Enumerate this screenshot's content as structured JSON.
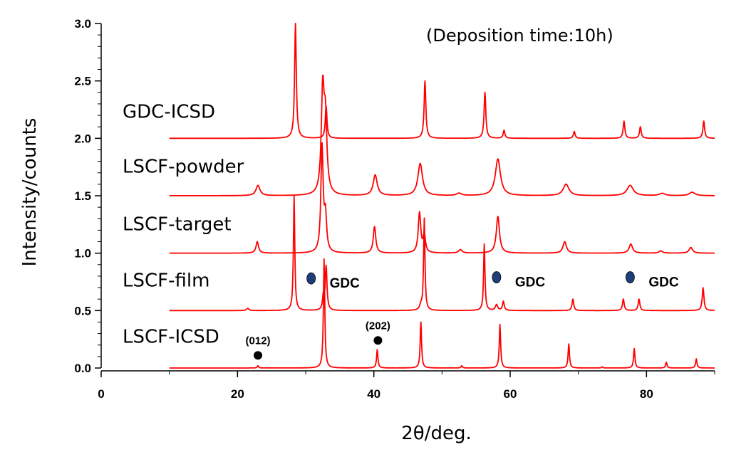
{
  "chart_data": {
    "type": "line",
    "title": "",
    "annotation_top": "(Deposition time:10h)",
    "xlabel": "2θ/deg.",
    "ylabel": "Intensity/counts",
    "xlim": [
      0,
      90
    ],
    "ylim": [
      0,
      3.0
    ],
    "x_ticks": [
      {
        "value": 0,
        "label": "0"
      },
      {
        "value": 20,
        "label": "20"
      },
      {
        "value": 40,
        "label": "40"
      },
      {
        "value": 60,
        "label": "60"
      },
      {
        "value": 80,
        "label": "80"
      }
    ],
    "y_ticks": [
      {
        "value": 0.0,
        "label": "0.0"
      },
      {
        "value": 0.5,
        "label": "0.5"
      },
      {
        "value": 1.0,
        "label": "1.0"
      },
      {
        "value": 1.5,
        "label": "1.5"
      },
      {
        "value": 2.0,
        "label": "2.0"
      },
      {
        "value": 2.5,
        "label": "2.5"
      },
      {
        "value": 3.0,
        "label": "3.0"
      }
    ],
    "line_color": "#ff0000",
    "x_range": [
      10,
      90
    ],
    "series": [
      {
        "name": "GDC-ICSD",
        "baseline": 2.0,
        "label_y": 2.18,
        "peaks": [
          [
            28.5,
            1.0,
            0.15
          ],
          [
            33.0,
            0.28,
            0.15
          ],
          [
            47.5,
            0.5,
            0.15
          ],
          [
            56.3,
            0.4,
            0.15
          ],
          [
            59.1,
            0.07,
            0.15
          ],
          [
            69.4,
            0.06,
            0.15
          ],
          [
            76.7,
            0.15,
            0.15
          ],
          [
            79.1,
            0.1,
            0.15
          ],
          [
            88.4,
            0.15,
            0.15
          ]
        ]
      },
      {
        "name": "LSCF-powder",
        "baseline": 1.5,
        "label_y": 1.7,
        "peaks": [
          [
            23.0,
            0.09,
            0.35
          ],
          [
            32.5,
            0.88,
            0.25
          ],
          [
            32.9,
            0.6,
            0.25
          ],
          [
            40.2,
            0.18,
            0.35
          ],
          [
            46.8,
            0.28,
            0.4
          ],
          [
            52.5,
            0.02,
            0.4
          ],
          [
            58.2,
            0.32,
            0.45
          ],
          [
            68.2,
            0.1,
            0.5
          ],
          [
            77.6,
            0.09,
            0.55
          ],
          [
            82.3,
            0.02,
            0.5
          ],
          [
            86.7,
            0.03,
            0.5
          ]
        ]
      },
      {
        "name": "LSCF-target",
        "baseline": 1.0,
        "label_y": 1.2,
        "peaks": [
          [
            22.9,
            0.1,
            0.22
          ],
          [
            32.4,
            0.92,
            0.2
          ],
          [
            32.9,
            0.3,
            0.2
          ],
          [
            40.1,
            0.23,
            0.22
          ],
          [
            46.7,
            0.35,
            0.22
          ],
          [
            47.4,
            0.15,
            0.2
          ],
          [
            52.7,
            0.03,
            0.3
          ],
          [
            58.2,
            0.32,
            0.28
          ],
          [
            68.0,
            0.1,
            0.3
          ],
          [
            77.7,
            0.08,
            0.3
          ],
          [
            82.1,
            0.02,
            0.3
          ],
          [
            86.5,
            0.05,
            0.3
          ]
        ]
      },
      {
        "name": "LSCF-film",
        "baseline": 0.5,
        "label_y": 0.71,
        "peaks": [
          [
            21.5,
            0.02,
            0.2
          ],
          [
            28.3,
            1.0,
            0.12
          ],
          [
            32.6,
            0.12,
            0.15
          ],
          [
            33.0,
            0.38,
            0.15
          ],
          [
            46.9,
            0.04,
            0.2
          ],
          [
            47.4,
            0.8,
            0.12
          ],
          [
            56.2,
            0.58,
            0.12
          ],
          [
            58.0,
            0.05,
            0.2
          ],
          [
            59.0,
            0.08,
            0.15
          ],
          [
            69.2,
            0.1,
            0.15
          ],
          [
            76.6,
            0.1,
            0.15
          ],
          [
            78.9,
            0.1,
            0.15
          ],
          [
            88.3,
            0.2,
            0.15
          ]
        ]
      },
      {
        "name": "LSCF-ICSD",
        "baseline": 0.0,
        "label_y": 0.22,
        "peaks": [
          [
            23.0,
            0.02,
            0.12
          ],
          [
            32.7,
            0.95,
            0.12
          ],
          [
            40.5,
            0.16,
            0.12
          ],
          [
            46.9,
            0.4,
            0.12
          ],
          [
            52.9,
            0.02,
            0.12
          ],
          [
            58.5,
            0.38,
            0.12
          ],
          [
            68.6,
            0.21,
            0.12
          ],
          [
            73.5,
            0.01,
            0.12
          ],
          [
            78.2,
            0.17,
            0.12
          ],
          [
            82.9,
            0.05,
            0.12
          ],
          [
            87.3,
            0.08,
            0.12
          ]
        ]
      }
    ],
    "gdc_markers": [
      {
        "x": 30.8,
        "y": 0.78,
        "label": "GDC"
      },
      {
        "x": 58.0,
        "y": 0.79,
        "label": "GDC"
      },
      {
        "x": 77.6,
        "y": 0.79,
        "label": "GDC"
      }
    ],
    "hkl_markers": [
      {
        "x": 23.0,
        "y": 0.11,
        "label": "(012)"
      },
      {
        "x": 40.6,
        "y": 0.24,
        "label": "(202)"
      }
    ],
    "gdc_marker_color": "#1f3f7a"
  }
}
